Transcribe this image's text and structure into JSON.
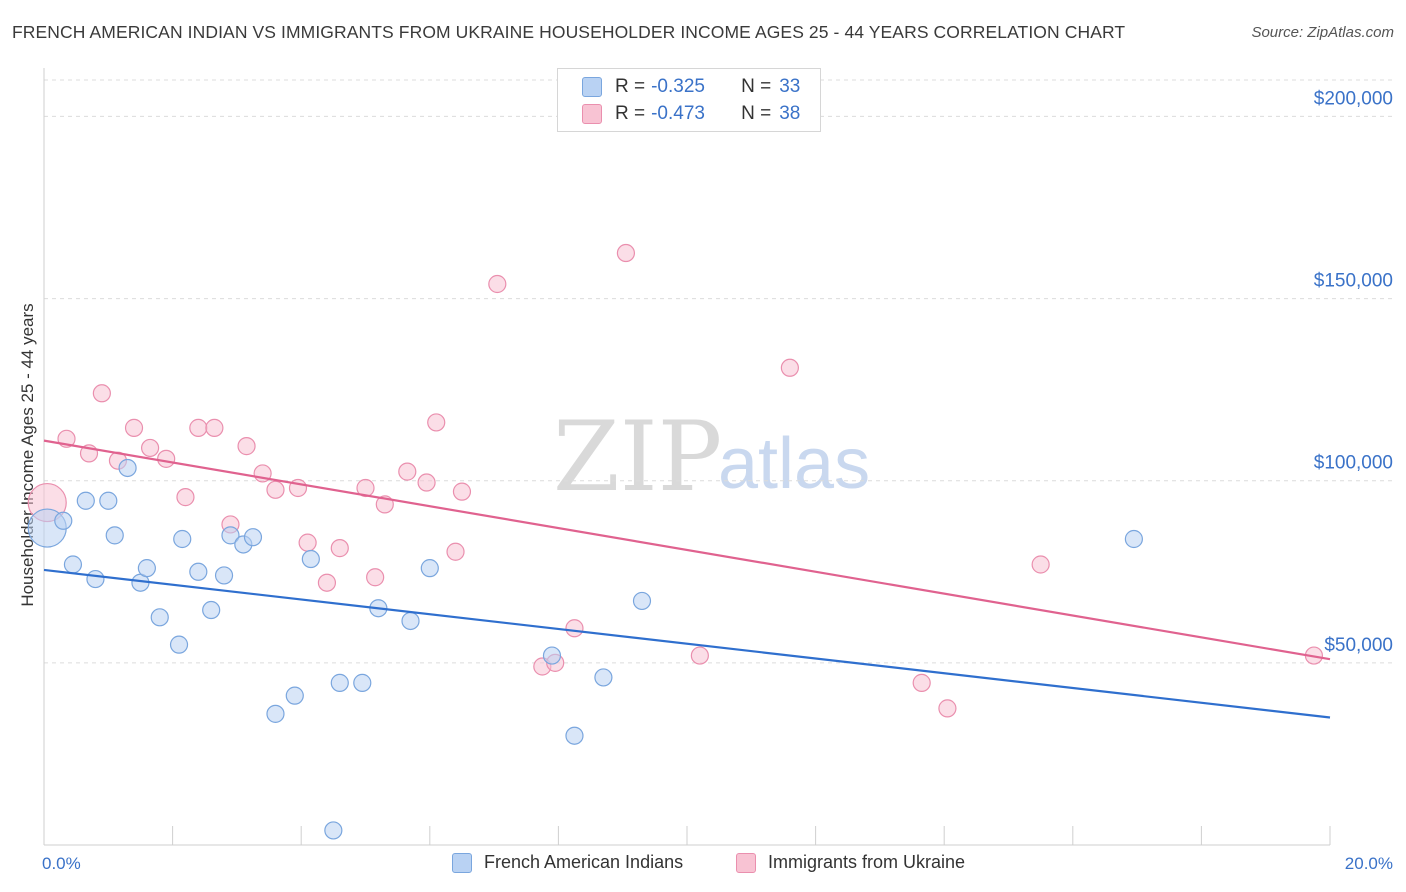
{
  "header": {
    "title": "FRENCH AMERICAN INDIAN VS IMMIGRANTS FROM UKRAINE HOUSEHOLDER INCOME AGES 25 - 44 YEARS CORRELATION CHART",
    "source": "Source: ZipAtlas.com"
  },
  "legend": {
    "series1": {
      "r_label": "R =",
      "r_value": "-0.325",
      "n_label": "N =",
      "n_value": "33"
    },
    "series2": {
      "r_label": "R =",
      "r_value": "-0.473",
      "n_label": "N =",
      "n_value": "38"
    }
  },
  "bottom_legend": {
    "series1": "French American Indians",
    "series2": "Immigrants from Ukraine"
  },
  "watermark": {
    "part1": "ZIP",
    "part2": "atlas"
  },
  "colors": {
    "series1_fill": "#b9d2f3",
    "series1_stroke": "#7aa6de",
    "series1_line": "#2f6fce",
    "series2_fill": "#f8c3d3",
    "series2_stroke": "#ea8fae",
    "series2_line": "#e0628f",
    "axis_label": "#3a72c8",
    "grid": "#dcdcdc"
  },
  "chart_data": {
    "type": "scatter",
    "title": "FRENCH AMERICAN INDIAN VS IMMIGRANTS FROM UKRAINE HOUSEHOLDER INCOME AGES 25 - 44 YEARS CORRELATION CHART",
    "xlabel": "",
    "ylabel": "Householder Income Ages 25 - 44 years",
    "xlim": [
      0,
      20
    ],
    "ylim": [
      0,
      210000
    ],
    "x_tick_labels": [
      "0.0%",
      "20.0%"
    ],
    "y_ticks": [
      50000,
      100000,
      150000,
      200000
    ],
    "y_tick_labels": [
      "$50,000",
      "$100,000",
      "$150,000",
      "$200,000"
    ],
    "grid": true,
    "legend_position": "top-center",
    "series": [
      {
        "name": "French American Indians",
        "r": -0.325,
        "n": 33,
        "trend": {
          "x": [
            0,
            20
          ],
          "y": [
            75500,
            35000
          ]
        },
        "points": [
          {
            "x": 0.05,
            "y": 87000,
            "big": true
          },
          {
            "x": 0.3,
            "y": 89000
          },
          {
            "x": 0.45,
            "y": 77000
          },
          {
            "x": 0.65,
            "y": 94500
          },
          {
            "x": 0.8,
            "y": 73000
          },
          {
            "x": 1.0,
            "y": 94500
          },
          {
            "x": 1.1,
            "y": 85000
          },
          {
            "x": 1.3,
            "y": 103500
          },
          {
            "x": 1.5,
            "y": 72000
          },
          {
            "x": 1.6,
            "y": 76000
          },
          {
            "x": 1.8,
            "y": 62500
          },
          {
            "x": 2.1,
            "y": 55000
          },
          {
            "x": 2.15,
            "y": 84000
          },
          {
            "x": 2.4,
            "y": 75000
          },
          {
            "x": 2.6,
            "y": 64500
          },
          {
            "x": 2.8,
            "y": 74000
          },
          {
            "x": 2.9,
            "y": 85000
          },
          {
            "x": 3.1,
            "y": 82500
          },
          {
            "x": 3.25,
            "y": 84500
          },
          {
            "x": 3.6,
            "y": 36000
          },
          {
            "x": 3.9,
            "y": 41000
          },
          {
            "x": 4.15,
            "y": 78500
          },
          {
            "x": 4.5,
            "y": 4000
          },
          {
            "x": 4.6,
            "y": 44500
          },
          {
            "x": 4.95,
            "y": 44500
          },
          {
            "x": 5.2,
            "y": 65000
          },
          {
            "x": 5.7,
            "y": 61500
          },
          {
            "x": 6.0,
            "y": 76000
          },
          {
            "x": 7.9,
            "y": 52000
          },
          {
            "x": 8.25,
            "y": 30000
          },
          {
            "x": 8.7,
            "y": 46000
          },
          {
            "x": 9.3,
            "y": 67000
          },
          {
            "x": 16.95,
            "y": 84000
          }
        ]
      },
      {
        "name": "Immigrants from Ukraine",
        "r": -0.473,
        "n": 38,
        "trend": {
          "x": [
            0,
            20
          ],
          "y": [
            111000,
            51000
          ]
        },
        "points": [
          {
            "x": 0.05,
            "y": 94000,
            "big": true
          },
          {
            "x": 0.35,
            "y": 111500
          },
          {
            "x": 0.7,
            "y": 107500
          },
          {
            "x": 0.9,
            "y": 124000
          },
          {
            "x": 1.15,
            "y": 105500
          },
          {
            "x": 1.4,
            "y": 114500
          },
          {
            "x": 1.65,
            "y": 109000
          },
          {
            "x": 1.9,
            "y": 106000
          },
          {
            "x": 2.2,
            "y": 95500
          },
          {
            "x": 2.4,
            "y": 114500
          },
          {
            "x": 2.65,
            "y": 114500
          },
          {
            "x": 2.9,
            "y": 88000
          },
          {
            "x": 3.15,
            "y": 109500
          },
          {
            "x": 3.4,
            "y": 102000
          },
          {
            "x": 3.6,
            "y": 97500
          },
          {
            "x": 3.95,
            "y": 98000
          },
          {
            "x": 4.1,
            "y": 83000
          },
          {
            "x": 4.4,
            "y": 72000
          },
          {
            "x": 4.6,
            "y": 81500
          },
          {
            "x": 5.0,
            "y": 98000
          },
          {
            "x": 5.15,
            "y": 73500
          },
          {
            "x": 5.3,
            "y": 93500
          },
          {
            "x": 5.65,
            "y": 102500
          },
          {
            "x": 5.95,
            "y": 99500
          },
          {
            "x": 6.1,
            "y": 116000
          },
          {
            "x": 6.4,
            "y": 80500
          },
          {
            "x": 6.5,
            "y": 97000
          },
          {
            "x": 7.05,
            "y": 154000
          },
          {
            "x": 7.75,
            "y": 49000
          },
          {
            "x": 7.95,
            "y": 50000
          },
          {
            "x": 8.25,
            "y": 59500
          },
          {
            "x": 9.05,
            "y": 162500
          },
          {
            "x": 10.2,
            "y": 52000
          },
          {
            "x": 11.6,
            "y": 131000
          },
          {
            "x": 13.65,
            "y": 44500
          },
          {
            "x": 14.05,
            "y": 37500
          },
          {
            "x": 15.5,
            "y": 77000
          },
          {
            "x": 19.75,
            "y": 52000
          }
        ]
      }
    ]
  }
}
